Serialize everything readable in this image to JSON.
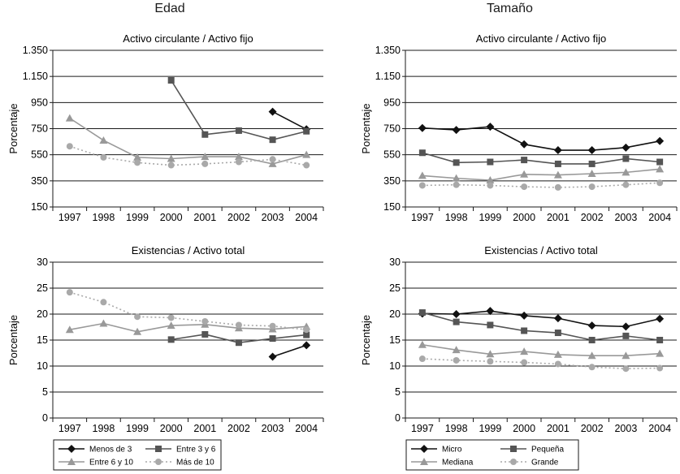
{
  "columns": {
    "left": "Edad",
    "right": "Tamaño"
  },
  "colors": {
    "dark": "#111111",
    "mid": "#555555",
    "light": "#999999",
    "lighter": "#a9a9a9"
  },
  "chart_data": [
    {
      "type": "line",
      "title": "Activo circulante / Activo fijo",
      "ylabel": "Porcentaje",
      "ylim": [
        150,
        1350
      ],
      "yticks": [
        "150",
        "350",
        "550",
        "750",
        "950",
        "1.150",
        "1.350"
      ],
      "x": [
        "1997",
        "1998",
        "1999",
        "2000",
        "2001",
        "2002",
        "2003",
        "2004"
      ],
      "series": [
        {
          "name": "Menos de 3",
          "marker": "diamond",
          "style": "dark",
          "values": [
            null,
            null,
            null,
            null,
            null,
            null,
            880,
            745
          ]
        },
        {
          "name": "Entre 3 y 6",
          "marker": "square",
          "style": "mid",
          "values": [
            null,
            null,
            null,
            1120,
            705,
            735,
            665,
            730
          ]
        },
        {
          "name": "Entre 6 y 10",
          "marker": "triangle",
          "style": "light",
          "values": [
            830,
            660,
            530,
            520,
            535,
            535,
            480,
            550
          ]
        },
        {
          "name": "Más de 10",
          "marker": "circle",
          "style": "dotted",
          "values": [
            615,
            530,
            490,
            470,
            480,
            495,
            515,
            470
          ]
        }
      ]
    },
    {
      "type": "line",
      "title": "Existencias / Activo total",
      "ylabel": "Porcentaje",
      "ylim": [
        0,
        30
      ],
      "yticks": [
        "0",
        "5",
        "10",
        "15",
        "20",
        "25",
        "30"
      ],
      "x": [
        "1997",
        "1998",
        "1999",
        "2000",
        "2001",
        "2002",
        "2003",
        "2004"
      ],
      "series": [
        {
          "name": "Menos de 3",
          "marker": "diamond",
          "style": "dark",
          "values": [
            null,
            null,
            null,
            null,
            null,
            null,
            11.8,
            14.0
          ]
        },
        {
          "name": "Entre 3 y 6",
          "marker": "square",
          "style": "mid",
          "values": [
            null,
            null,
            null,
            15.1,
            16.1,
            14.5,
            15.3,
            16.0
          ]
        },
        {
          "name": "Entre 6 y 10",
          "marker": "triangle",
          "style": "light",
          "values": [
            17.0,
            18.2,
            16.6,
            17.8,
            18.0,
            17.3,
            17.1,
            17.6
          ]
        },
        {
          "name": "Más de 10",
          "marker": "circle",
          "style": "dotted",
          "values": [
            24.2,
            22.3,
            19.5,
            19.3,
            18.6,
            17.9,
            17.7,
            17.0
          ]
        }
      ]
    },
    {
      "type": "line",
      "title": "Activo circulante / Activo fijo",
      "ylabel": "Porcentaje",
      "ylim": [
        150,
        1350
      ],
      "yticks": [
        "150",
        "350",
        "550",
        "750",
        "950",
        "1.150",
        "1.350"
      ],
      "x": [
        "1997",
        "1998",
        "1999",
        "2000",
        "2001",
        "2002",
        "2003",
        "2004"
      ],
      "series": [
        {
          "name": "Micro",
          "marker": "diamond",
          "style": "dark",
          "values": [
            755,
            740,
            765,
            630,
            585,
            585,
            605,
            655
          ]
        },
        {
          "name": "Pequeña",
          "marker": "square",
          "style": "mid",
          "values": [
            565,
            490,
            495,
            510,
            480,
            480,
            520,
            495
          ]
        },
        {
          "name": "Mediana",
          "marker": "triangle",
          "style": "light",
          "values": [
            390,
            370,
            355,
            400,
            395,
            405,
            415,
            440
          ]
        },
        {
          "name": "Grande",
          "marker": "circle",
          "style": "dotted",
          "values": [
            315,
            320,
            315,
            305,
            300,
            305,
            320,
            335
          ]
        }
      ]
    },
    {
      "type": "line",
      "title": "Existencias / Activo total",
      "ylabel": "Porcentaje",
      "ylim": [
        0,
        30
      ],
      "yticks": [
        "0",
        "5",
        "10",
        "15",
        "20",
        "25",
        "30"
      ],
      "x": [
        "1997",
        "1998",
        "1999",
        "2000",
        "2001",
        "2002",
        "2003",
        "2004"
      ],
      "series": [
        {
          "name": "Micro",
          "marker": "diamond",
          "style": "dark",
          "values": [
            20.1,
            20.0,
            20.6,
            19.7,
            19.2,
            17.8,
            17.6,
            19.1
          ]
        },
        {
          "name": "Pequeña",
          "marker": "square",
          "style": "mid",
          "values": [
            20.3,
            18.5,
            17.9,
            16.8,
            16.4,
            15.0,
            15.8,
            15.0
          ]
        },
        {
          "name": "Mediana",
          "marker": "triangle",
          "style": "light",
          "values": [
            14.1,
            13.1,
            12.3,
            12.8,
            12.2,
            12.0,
            12.0,
            12.4
          ]
        },
        {
          "name": "Grande",
          "marker": "circle",
          "style": "dotted",
          "values": [
            11.4,
            11.1,
            10.9,
            10.7,
            10.4,
            9.8,
            9.5,
            9.6
          ]
        }
      ]
    }
  ],
  "legends": [
    {
      "items": [
        "Menos de 3",
        "Entre 3 y 6",
        "Entre 6 y 10",
        "Más de 10"
      ]
    },
    {
      "items": [
        "Micro",
        "Pequeña",
        "Mediana",
        "Grande"
      ]
    }
  ]
}
